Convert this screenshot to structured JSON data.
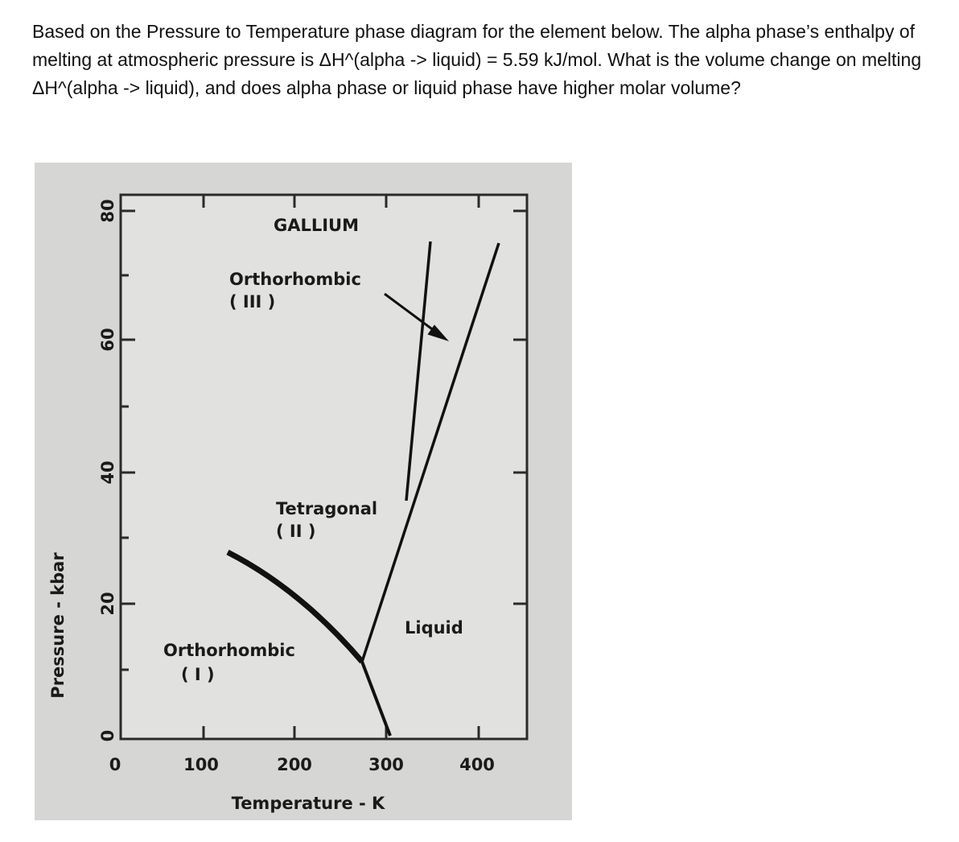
{
  "question": "Based on the Pressure to Temperature phase diagram for the element below. The alpha phase’s enthalpy of melting at atmospheric pressure is ΔH^(alpha -> liquid) = 5.59 kJ/mol. What is the volume change on melting ΔH^(alpha -> liquid), and does alpha phase or liquid phase have higher molar volume?",
  "figure": {
    "title": "GALLIUM",
    "y_axis_label": "Pressure - kbar",
    "x_axis_label": "Temperature - K",
    "yticks": [
      80,
      60,
      40,
      20,
      0
    ],
    "xticks": [
      0,
      100,
      200,
      300,
      400
    ],
    "regions": [
      {
        "name": "Orthorhombic",
        "label": "( III )"
      },
      {
        "name": "Tetragonal",
        "label": "( II )"
      },
      {
        "name": "Orthorhombic",
        "label": "( I )"
      },
      {
        "name": "Liquid"
      }
    ]
  }
}
